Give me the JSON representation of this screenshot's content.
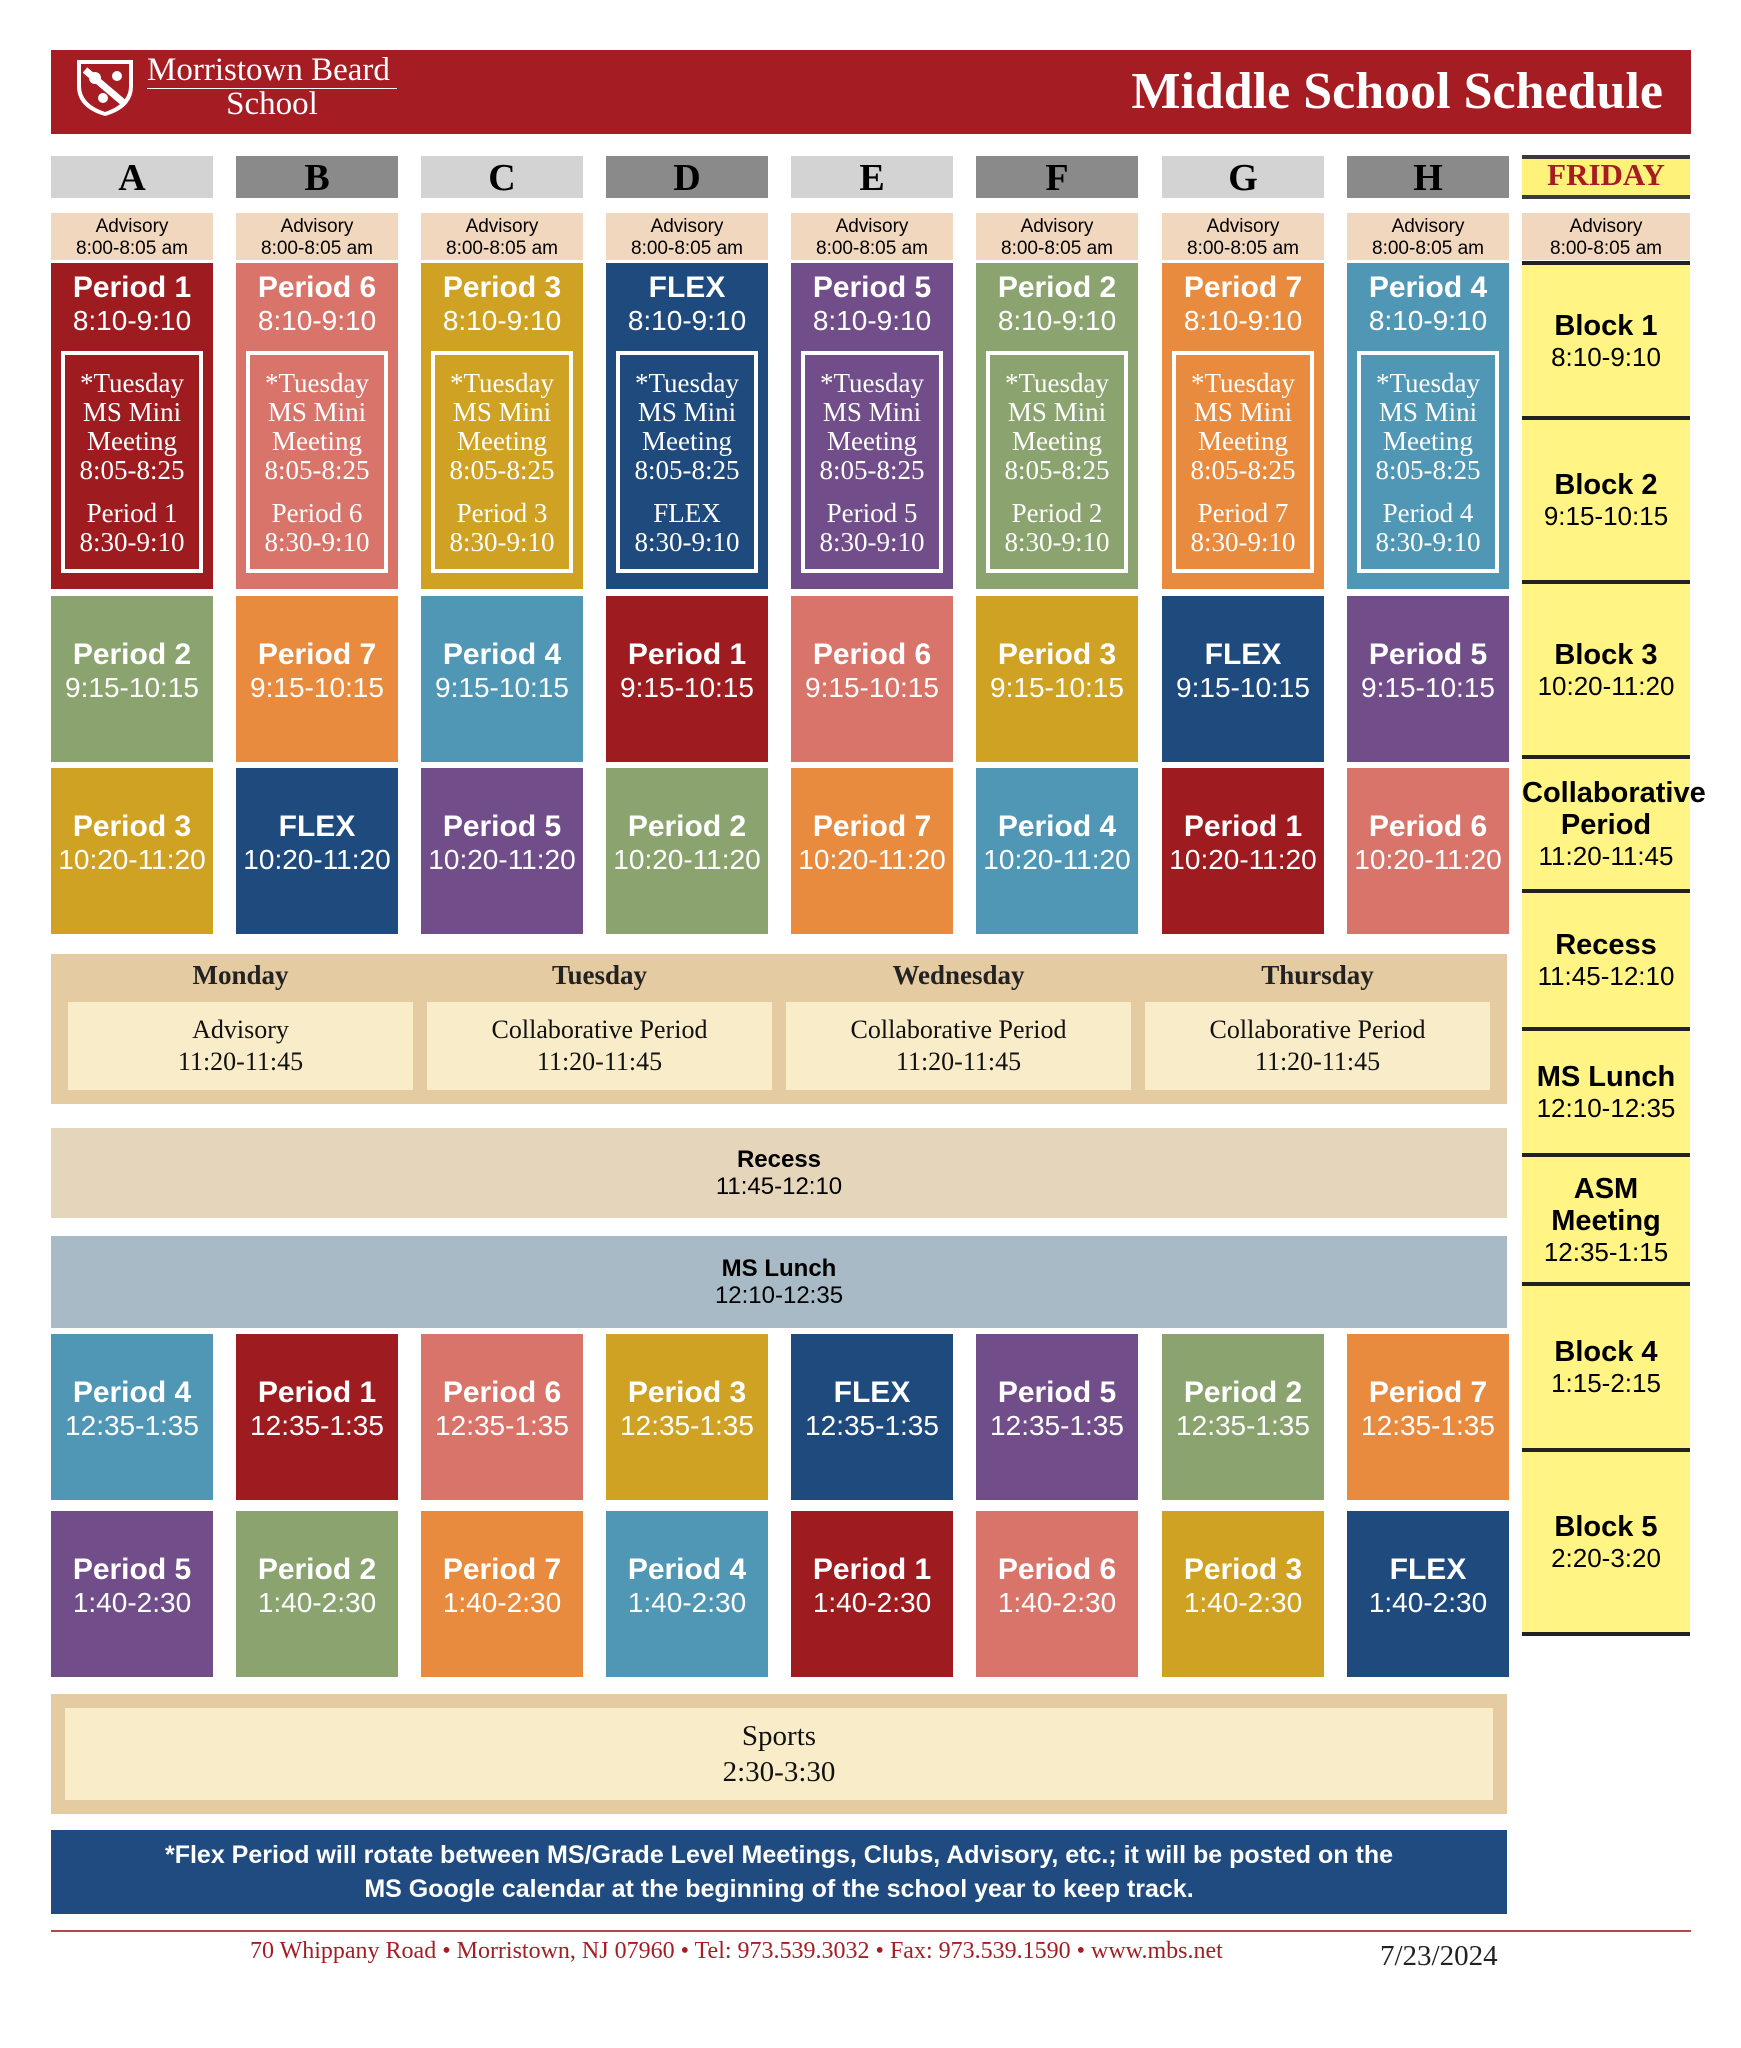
{
  "header": {
    "logo_line1": "Morristown Beard",
    "logo_line2": "School",
    "title": "Middle School Schedule"
  },
  "days": [
    {
      "letter": "A",
      "advisory_label": "Advisory",
      "advisory_time": "8:00-8:05 am",
      "p1": {
        "name": "Period 1",
        "time": "8:10-9:10"
      },
      "tuesday": {
        "l1": "*Tuesday",
        "l2": "MS Mini",
        "l3": "Meeting",
        "l4": "8:05-8:25",
        "l5": "Period 1",
        "l6": "8:30-9:10"
      },
      "p2": {
        "name": "Period 2",
        "time": "9:15-10:15"
      },
      "p3": {
        "name": "Period 3",
        "time": "10:20-11:20"
      },
      "p4": {
        "name": "Period 4",
        "time": "12:35-1:35"
      },
      "p5": {
        "name": "Period 5",
        "time": "1:40-2:30"
      }
    },
    {
      "letter": "B",
      "advisory_label": "Advisory",
      "advisory_time": "8:00-8:05 am",
      "p1": {
        "name": "Period 6",
        "time": "8:10-9:10"
      },
      "tuesday": {
        "l1": "*Tuesday",
        "l2": "MS Mini",
        "l3": "Meeting",
        "l4": "8:05-8:25",
        "l5": "Period 6",
        "l6": "8:30-9:10"
      },
      "p2": {
        "name": "Period 7",
        "time": "9:15-10:15"
      },
      "p3": {
        "name": "FLEX",
        "time": "10:20-11:20"
      },
      "p4": {
        "name": "Period 1",
        "time": "12:35-1:35"
      },
      "p5": {
        "name": "Period 2",
        "time": "1:40-2:30"
      }
    },
    {
      "letter": "C",
      "advisory_label": "Advisory",
      "advisory_time": "8:00-8:05 am",
      "p1": {
        "name": "Period 3",
        "time": "8:10-9:10"
      },
      "tuesday": {
        "l1": "*Tuesday",
        "l2": "MS Mini",
        "l3": "Meeting",
        "l4": "8:05-8:25",
        "l5": "Period 3",
        "l6": "8:30-9:10"
      },
      "p2": {
        "name": "Period 4",
        "time": "9:15-10:15"
      },
      "p3": {
        "name": "Period 5",
        "time": "10:20-11:20"
      },
      "p4": {
        "name": "Period 6",
        "time": "12:35-1:35"
      },
      "p5": {
        "name": "Period 7",
        "time": "1:40-2:30"
      }
    },
    {
      "letter": "D",
      "advisory_label": "Advisory",
      "advisory_time": "8:00-8:05 am",
      "p1": {
        "name": "FLEX",
        "time": "8:10-9:10"
      },
      "tuesday": {
        "l1": "*Tuesday",
        "l2": "MS Mini",
        "l3": "Meeting",
        "l4": "8:05-8:25",
        "l5": "FLEX",
        "l6": "8:30-9:10"
      },
      "p2": {
        "name": "Period 1",
        "time": "9:15-10:15"
      },
      "p3": {
        "name": "Period 2",
        "time": "10:20-11:20"
      },
      "p4": {
        "name": "Period 3",
        "time": "12:35-1:35"
      },
      "p5": {
        "name": "Period 4",
        "time": "1:40-2:30"
      }
    },
    {
      "letter": "E",
      "advisory_label": "Advisory",
      "advisory_time": "8:00-8:05 am",
      "p1": {
        "name": "Period 5",
        "time": "8:10-9:10"
      },
      "tuesday": {
        "l1": "*Tuesday",
        "l2": "MS Mini",
        "l3": "Meeting",
        "l4": "8:05-8:25",
        "l5": "Period 5",
        "l6": "8:30-9:10"
      },
      "p2": {
        "name": "Period 6",
        "time": "9:15-10:15"
      },
      "p3": {
        "name": "Period 7",
        "time": "10:20-11:20"
      },
      "p4": {
        "name": "FLEX",
        "time": "12:35-1:35"
      },
      "p5": {
        "name": "Period 1",
        "time": "1:40-2:30"
      }
    },
    {
      "letter": "F",
      "advisory_label": "Advisory",
      "advisory_time": "8:00-8:05 am",
      "p1": {
        "name": "Period 2",
        "time": "8:10-9:10"
      },
      "tuesday": {
        "l1": "*Tuesday",
        "l2": "MS Mini",
        "l3": "Meeting",
        "l4": "8:05-8:25",
        "l5": "Period 2",
        "l6": "8:30-9:10"
      },
      "p2": {
        "name": "Period 3",
        "time": "9:15-10:15"
      },
      "p3": {
        "name": "Period 4",
        "time": "10:20-11:20"
      },
      "p4": {
        "name": "Period 5",
        "time": "12:35-1:35"
      },
      "p5": {
        "name": "Period 6",
        "time": "1:40-2:30"
      }
    },
    {
      "letter": "G",
      "advisory_label": "Advisory",
      "advisory_time": "8:00-8:05 am",
      "p1": {
        "name": "Period 7",
        "time": "8:10-9:10"
      },
      "tuesday": {
        "l1": "*Tuesday",
        "l2": "MS Mini",
        "l3": "Meeting",
        "l4": "8:05-8:25",
        "l5": "Period 7",
        "l6": "8:30-9:10"
      },
      "p2": {
        "name": "FLEX",
        "time": "9:15-10:15"
      },
      "p3": {
        "name": "Period 1",
        "time": "10:20-11:20"
      },
      "p4": {
        "name": "Period 2",
        "time": "12:35-1:35"
      },
      "p5": {
        "name": "Period 3",
        "time": "1:40-2:30"
      }
    },
    {
      "letter": "H",
      "advisory_label": "Advisory",
      "advisory_time": "8:00-8:05 am",
      "p1": {
        "name": "Period 4",
        "time": "8:10-9:10"
      },
      "tuesday": {
        "l1": "*Tuesday",
        "l2": "MS Mini",
        "l3": "Meeting",
        "l4": "8:05-8:25",
        "l5": "Period 4",
        "l6": "8:30-9:10"
      },
      "p2": {
        "name": "Period 5",
        "time": "9:15-10:15"
      },
      "p3": {
        "name": "Period 6",
        "time": "10:20-11:20"
      },
      "p4": {
        "name": "Period 7",
        "time": "12:35-1:35"
      },
      "p5": {
        "name": "FLEX",
        "time": "1:40-2:30"
      }
    }
  ],
  "friday": {
    "label": "FRIDAY",
    "advisory_label": "Advisory",
    "advisory_time": "8:00-8:05 am",
    "blocks": [
      {
        "l1": "Block 1",
        "l2": "",
        "time": "8:10-9:10"
      },
      {
        "l1": "Block 2",
        "l2": "",
        "time": "9:15-10:15"
      },
      {
        "l1": "Block 3",
        "l2": "",
        "time": "10:20-11:20"
      },
      {
        "l1": "Collaborative",
        "l2": "Period",
        "time": "11:20-11:45"
      },
      {
        "l1": "Recess",
        "l2": "",
        "time": "11:45-12:10"
      },
      {
        "l1": "MS Lunch",
        "l2": "",
        "time": "12:10-12:35"
      },
      {
        "l1": "ASM",
        "l2": "Meeting",
        "time": "12:35-1:15"
      },
      {
        "l1": "Block 4",
        "l2": "",
        "time": "1:15-2:15"
      },
      {
        "l1": "Block 5",
        "l2": "",
        "time": "2:20-3:20"
      }
    ]
  },
  "midday": [
    {
      "day": "Monday",
      "label": "Advisory",
      "time": "11:20-11:45"
    },
    {
      "day": "Tuesday",
      "label": "Collaborative Period",
      "time": "11:20-11:45"
    },
    {
      "day": "Wednesday",
      "label": "Collaborative Period",
      "time": "11:20-11:45"
    },
    {
      "day": "Thursday",
      "label": "Collaborative Period",
      "time": "11:20-11:45"
    }
  ],
  "recess": {
    "label": "Recess",
    "time": "11:45-12:10"
  },
  "lunch": {
    "label": "MS Lunch",
    "time": "12:10-12:35"
  },
  "sports": {
    "label": "Sports",
    "time": "2:30-3:30"
  },
  "note": {
    "line1": "*Flex Period will rotate between MS/Grade Level Meetings, Clubs, Advisory, etc.; it will be posted on the",
    "line2": "MS Google calendar at the beginning of the school year to keep track."
  },
  "footer": {
    "address": "70 Whippany Road • Morristown, NJ 07960 • Tel: 973.539.3032 • Fax: 973.539.1590 • www.mbs.net",
    "date": "7/23/2024"
  },
  "colors": {
    "brand_red": "#a51d23",
    "period_1": "#9e1b20",
    "period_2": "#8ba46f",
    "period_3": "#cfa224",
    "period_4": "#4f97b5",
    "period_5": "#714e89",
    "period_6": "#d9746b",
    "period_7": "#e98b3e",
    "flex": "#1e4a7e",
    "friday_yellow": "#fff484"
  }
}
